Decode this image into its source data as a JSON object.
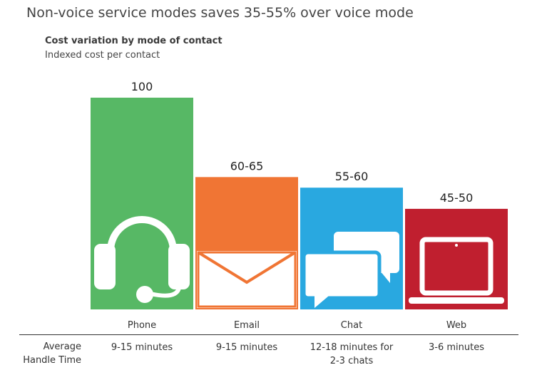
{
  "headline": "Non-voice service modes saves 35-55% over voice mode",
  "chart_data": {
    "type": "bar",
    "title": "Cost variation by mode of contact",
    "ylabel": "Indexed cost per contact",
    "ylim": [
      0,
      100
    ],
    "categories": [
      "Phone",
      "Email",
      "Chat",
      "Web"
    ],
    "values": [
      100,
      62.5,
      57.5,
      47.5
    ],
    "value_labels": [
      "100",
      "60-65",
      "55-60",
      "45-50"
    ],
    "colors": [
      "#57b865",
      "#f07534",
      "#29a8e0",
      "#c01f2f"
    ],
    "icons": [
      "headset-icon",
      "envelope-icon",
      "chat-bubbles-icon",
      "laptop-icon"
    ]
  },
  "table": {
    "row_label_line1": "Average",
    "row_label_line2": "Handle Time",
    "handle_times": [
      [
        "9-15 minutes"
      ],
      [
        "9-15 minutes"
      ],
      [
        "12-18 minutes for",
        "2-3 chats"
      ],
      [
        "3-6 minutes"
      ]
    ]
  }
}
